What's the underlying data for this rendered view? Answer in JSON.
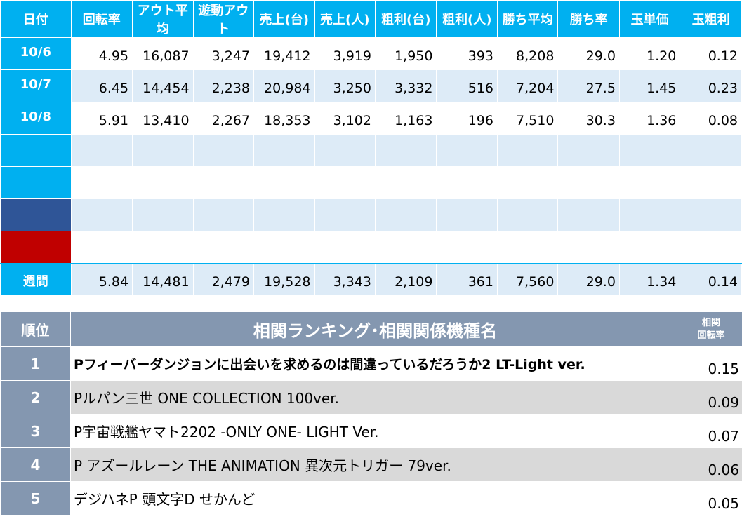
{
  "stats": {
    "headers": [
      "日付",
      "回転率",
      "アウト平均",
      "遊動アウト",
      "売上(台)",
      "売上(人)",
      "粗利(台)",
      "粗利(人)",
      "勝ち平均",
      "勝ち率",
      "玉単価",
      "玉粗利"
    ],
    "rows": [
      {
        "date": "10/6",
        "values": [
          "4.95",
          "16,087",
          "3,247",
          "19,412",
          "3,919",
          "1,950",
          "393",
          "8,208",
          "29.0",
          "1.20",
          "0.12"
        ]
      },
      {
        "date": "10/7",
        "values": [
          "6.45",
          "14,454",
          "2,238",
          "20,984",
          "3,250",
          "3,332",
          "516",
          "7,204",
          "27.5",
          "1.45",
          "0.23"
        ]
      },
      {
        "date": "10/8",
        "values": [
          "5.91",
          "13,410",
          "2,267",
          "18,353",
          "3,102",
          "1,163",
          "196",
          "7,510",
          "30.3",
          "1.36",
          "0.08"
        ]
      }
    ],
    "empty_row_colors": [
      "#00b0f0",
      "#00b0f0",
      "#2f5597",
      "#c00000"
    ],
    "week": {
      "label": "週間",
      "values": [
        "5.84",
        "14,481",
        "2,479",
        "19,528",
        "3,343",
        "2,109",
        "361",
        "7,560",
        "29.0",
        "1.34",
        "0.14"
      ]
    }
  },
  "ranking": {
    "rank_header": "順位",
    "title": "相関ランキング･相関関係機種名",
    "value_header_line1": "相関",
    "value_header_line2": "回転率",
    "items": [
      {
        "rank": "1",
        "name": "Pフィーバーダンジョンに出会いを求めるのは間違っているだろうか2 LT-Light ver.",
        "value": "0.15",
        "bold": true
      },
      {
        "rank": "2",
        "name": "Pルパン三世 ONE COLLECTION 100ver.",
        "value": "0.09",
        "bold": false
      },
      {
        "rank": "3",
        "name": "P宇宙戦艦ヤマト2202 -ONLY ONE- LIGHT Ver.",
        "value": "0.07",
        "bold": false
      },
      {
        "rank": "4",
        "name": "P アズールレーン THE ANIMATION 異次元トリガー 79ver.",
        "value": "0.06",
        "bold": false
      },
      {
        "rank": "5",
        "name": "デジハネP 頭文字D せかんど",
        "value": "0.05",
        "bold": false
      }
    ]
  }
}
